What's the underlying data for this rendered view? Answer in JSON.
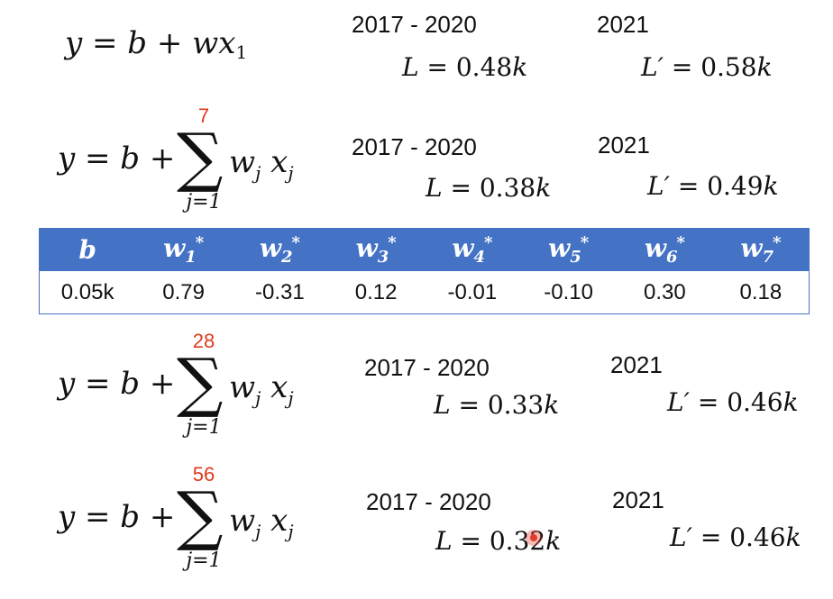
{
  "models": [
    {
      "equation": {
        "lhs": "y = b + w",
        "var": "x",
        "sub": "1"
      },
      "train_period": "2017 - 2020",
      "train_loss_label": "L",
      "train_loss_value": " = 0.48",
      "test_period": "2021",
      "test_loss_label": "L′",
      "test_loss_value": " = 0.58",
      "unit": "k"
    },
    {
      "equation": {
        "lhs": "y = b + ",
        "upper": "7",
        "lower": "j=1",
        "w": "w",
        "x": "x",
        "sub": "j"
      },
      "train_period": "2017 - 2020",
      "train_loss_label": "L",
      "train_loss_value": " = 0.38",
      "test_period": "2021",
      "test_loss_label": "L′",
      "test_loss_value": " = 0.49",
      "unit": "k"
    },
    {
      "equation": {
        "lhs": "y = b + ",
        "upper": "28",
        "lower": "j=1",
        "w": "w",
        "x": "x",
        "sub": "j"
      },
      "train_period": "2017 - 2020",
      "train_loss_label": "L",
      "train_loss_value": " = 0.33",
      "test_period": "2021",
      "test_loss_label": "L′",
      "test_loss_value": " = 0.46",
      "unit": "k"
    },
    {
      "equation": {
        "lhs": "y = b + ",
        "upper": "56",
        "lower": "j=1",
        "w": "w",
        "x": "x",
        "sub": "j"
      },
      "train_period": "2017 - 2020",
      "train_loss_label": "L",
      "train_loss_value": " = 0.32",
      "test_period": "2021",
      "test_loss_label": "L′",
      "test_loss_value": " = 0.46",
      "unit": "k"
    }
  ],
  "weights_table": {
    "headers": [
      {
        "base": "b",
        "sub": "",
        "star": ""
      },
      {
        "base": "w",
        "sub": "1",
        "star": "*"
      },
      {
        "base": "w",
        "sub": "2",
        "star": "*"
      },
      {
        "base": "w",
        "sub": "3",
        "star": "*"
      },
      {
        "base": "w",
        "sub": "4",
        "star": "*"
      },
      {
        "base": "w",
        "sub": "5",
        "star": "*"
      },
      {
        "base": "w",
        "sub": "6",
        "star": "*"
      },
      {
        "base": "w",
        "sub": "7",
        "star": "*"
      }
    ],
    "values": [
      "0.05k",
      "0.79",
      "-0.31",
      "0.12",
      "-0.01",
      "-0.10",
      "0.30",
      "0.18"
    ]
  },
  "colors": {
    "header_background": "#4472c4",
    "upper_limit_red": "#e03a1e",
    "cursor": "#e53c28"
  },
  "icons": [
    "cursor-pointer-icon"
  ]
}
